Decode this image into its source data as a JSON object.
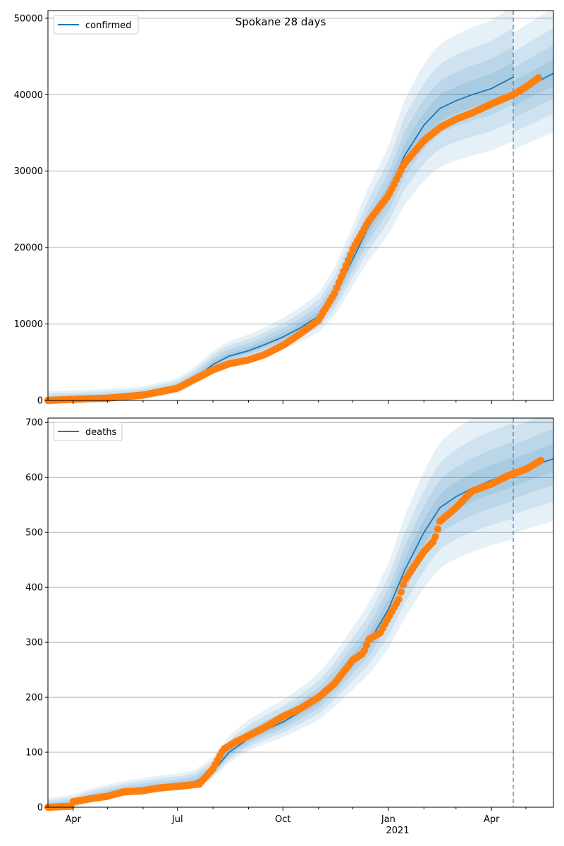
{
  "figure": {
    "title": "Spokane 28 days",
    "x_tick_labels": [
      "Apr",
      "Jul",
      "Oct",
      "Jan",
      "Apr"
    ],
    "x_year_label": "2021"
  },
  "colors": {
    "line": "#1f77b4",
    "observed": "#ff7f0e",
    "band": "#1f77b4",
    "grid": "#b0b0b0"
  },
  "chart_data": [
    {
      "type": "line",
      "panel": "top",
      "series": [
        {
          "name": "confirmed",
          "role": "model-median"
        },
        {
          "role": "observed"
        }
      ],
      "x_range": [
        "2020-03-10",
        "2021-05-25"
      ],
      "forecast_date": "2021-04-20",
      "ylim": [
        0,
        51000
      ],
      "yticks": [
        0,
        10000,
        20000,
        30000,
        40000,
        50000
      ],
      "grid": "horizontal",
      "legend_position": "top-left",
      "model_median": [
        [
          "2020-03-10",
          0
        ],
        [
          "2020-04-01",
          60
        ],
        [
          "2020-05-01",
          250
        ],
        [
          "2020-06-01",
          550
        ],
        [
          "2020-07-01",
          1500
        ],
        [
          "2020-07-15",
          2700
        ],
        [
          "2020-08-01",
          4700
        ],
        [
          "2020-08-15",
          5800
        ],
        [
          "2020-09-01",
          6500
        ],
        [
          "2020-09-15",
          7300
        ],
        [
          "2020-10-01",
          8300
        ],
        [
          "2020-10-15",
          9400
        ],
        [
          "2020-11-01",
          11000
        ],
        [
          "2020-11-15",
          13800
        ],
        [
          "2020-12-01",
          18500
        ],
        [
          "2020-12-15",
          22800
        ],
        [
          "2021-01-01",
          27000
        ],
        [
          "2021-01-15",
          32000
        ],
        [
          "2021-02-01",
          36000
        ],
        [
          "2021-02-15",
          38200
        ],
        [
          "2021-03-01",
          39200
        ],
        [
          "2021-03-15",
          40000
        ],
        [
          "2021-04-01",
          40800
        ],
        [
          "2021-04-20",
          42300
        ]
      ],
      "forecast_median": [
        [
          "2021-04-20",
          40000
        ],
        [
          "2021-05-01",
          40900
        ],
        [
          "2021-05-15",
          42000
        ],
        [
          "2021-05-25",
          42800
        ]
      ],
      "band_widths": [
        0.04,
        0.08,
        0.13,
        0.19
      ],
      "observed": [
        [
          "2020-03-10",
          0
        ],
        [
          "2020-04-01",
          150
        ],
        [
          "2020-05-01",
          300
        ],
        [
          "2020-06-01",
          700
        ],
        [
          "2020-07-01",
          1600
        ],
        [
          "2020-07-15",
          2700
        ],
        [
          "2020-08-01",
          4000
        ],
        [
          "2020-08-15",
          4800
        ],
        [
          "2020-09-01",
          5300
        ],
        [
          "2020-09-15",
          6000
        ],
        [
          "2020-10-01",
          7200
        ],
        [
          "2020-10-15",
          8600
        ],
        [
          "2020-11-01",
          10500
        ],
        [
          "2020-11-15",
          14000
        ],
        [
          "2020-12-01",
          19800
        ],
        [
          "2020-12-15",
          23500
        ],
        [
          "2021-01-01",
          26800
        ],
        [
          "2021-01-15",
          31000
        ],
        [
          "2021-02-01",
          34000
        ],
        [
          "2021-02-15",
          35700
        ],
        [
          "2021-03-01",
          36800
        ],
        [
          "2021-03-15",
          37600
        ],
        [
          "2021-04-01",
          38800
        ],
        [
          "2021-04-20",
          40000
        ],
        [
          "2021-05-01",
          41000
        ],
        [
          "2021-05-12",
          42200
        ]
      ]
    },
    {
      "type": "line",
      "panel": "bottom",
      "series": [
        {
          "name": "deaths",
          "role": "model-median"
        },
        {
          "role": "observed"
        }
      ],
      "x_range": [
        "2020-03-10",
        "2021-05-25"
      ],
      "forecast_date": "2021-04-20",
      "ylim": [
        0,
        708
      ],
      "yticks": [
        0,
        100,
        200,
        300,
        400,
        500,
        600,
        700
      ],
      "grid": "horizontal",
      "legend_position": "top-left",
      "model_median": [
        [
          "2020-03-10",
          0
        ],
        [
          "2020-04-01",
          5
        ],
        [
          "2020-04-15",
          15
        ],
        [
          "2020-05-01",
          22
        ],
        [
          "2020-05-15",
          28
        ],
        [
          "2020-06-01",
          33
        ],
        [
          "2020-06-15",
          37
        ],
        [
          "2020-07-01",
          40
        ],
        [
          "2020-07-15",
          44
        ],
        [
          "2020-08-01",
          65
        ],
        [
          "2020-08-15",
          100
        ],
        [
          "2020-09-01",
          125
        ],
        [
          "2020-09-15",
          140
        ],
        [
          "2020-10-01",
          155
        ],
        [
          "2020-10-15",
          172
        ],
        [
          "2020-11-01",
          195
        ],
        [
          "2020-11-15",
          225
        ],
        [
          "2020-12-01",
          265
        ],
        [
          "2020-12-15",
          300
        ],
        [
          "2021-01-01",
          360
        ],
        [
          "2021-01-15",
          430
        ],
        [
          "2021-02-01",
          500
        ],
        [
          "2021-02-15",
          545
        ],
        [
          "2021-03-01",
          565
        ],
        [
          "2021-03-15",
          580
        ],
        [
          "2021-04-01",
          595
        ],
        [
          "2021-04-20",
          608
        ]
      ],
      "forecast_median": [
        [
          "2021-04-20",
          608
        ],
        [
          "2021-05-01",
          616
        ],
        [
          "2021-05-15",
          627
        ],
        [
          "2021-05-25",
          634
        ]
      ],
      "band_widths": [
        0.04,
        0.08,
        0.13,
        0.19
      ],
      "observed": [
        [
          "2020-03-10",
          0
        ],
        [
          "2020-03-31",
          2
        ],
        [
          "2020-04-01",
          10
        ],
        [
          "2020-04-15",
          15
        ],
        [
          "2020-05-01",
          20
        ],
        [
          "2020-05-15",
          28
        ],
        [
          "2020-06-01",
          30
        ],
        [
          "2020-06-15",
          35
        ],
        [
          "2020-07-01",
          38
        ],
        [
          "2020-07-20",
          42
        ],
        [
          "2020-08-01",
          70
        ],
        [
          "2020-08-10",
          105
        ],
        [
          "2020-08-20",
          118
        ],
        [
          "2020-09-01",
          130
        ],
        [
          "2020-09-15",
          145
        ],
        [
          "2020-10-01",
          165
        ],
        [
          "2020-10-15",
          178
        ],
        [
          "2020-11-01",
          200
        ],
        [
          "2020-11-15",
          225
        ],
        [
          "2020-12-01",
          268
        ],
        [
          "2020-12-10",
          280
        ],
        [
          "2020-12-15",
          305
        ],
        [
          "2020-12-25",
          318
        ],
        [
          "2021-01-01",
          345
        ],
        [
          "2021-01-10",
          378
        ],
        [
          "2021-01-15",
          412
        ],
        [
          "2021-02-01",
          465
        ],
        [
          "2021-02-10",
          485
        ],
        [
          "2021-02-15",
          520
        ],
        [
          "2021-03-01",
          545
        ],
        [
          "2021-03-15",
          575
        ],
        [
          "2021-04-01",
          588
        ],
        [
          "2021-04-15",
          603
        ],
        [
          "2021-05-01",
          615
        ],
        [
          "2021-05-15",
          632
        ]
      ]
    }
  ]
}
